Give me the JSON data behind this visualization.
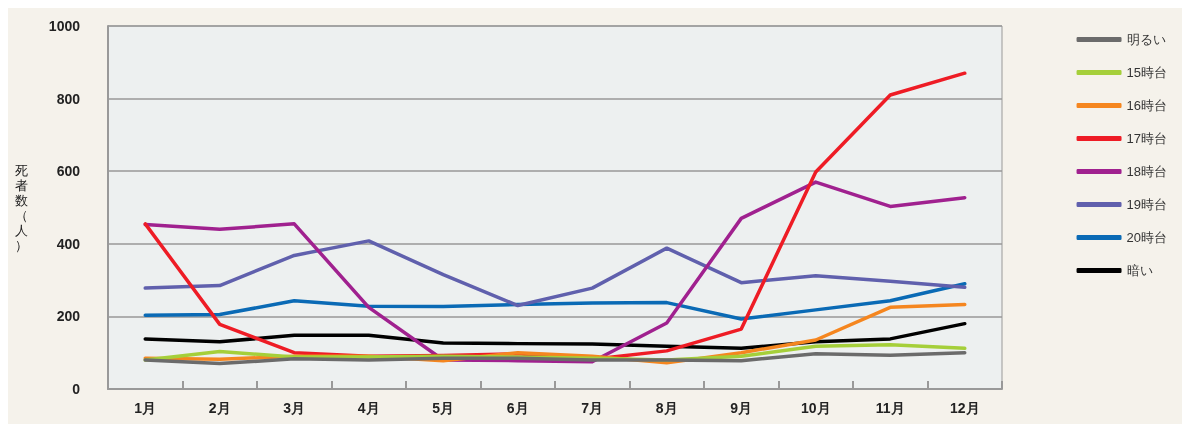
{
  "chart_data": {
    "type": "line",
    "ylabel": "死者数（人）",
    "categories": [
      "1月",
      "2月",
      "3月",
      "4月",
      "5月",
      "6月",
      "7月",
      "8月",
      "9月",
      "10月",
      "11月",
      "12月"
    ],
    "ylim": [
      0,
      1000
    ],
    "yticks": [
      0,
      200,
      400,
      600,
      800,
      1000
    ],
    "grid": "y",
    "legend": "top right",
    "marker": "none",
    "line_style": "solid",
    "series": [
      {
        "name": "明るい",
        "color": "#6b6b6b",
        "values": [
          80,
          70,
          83,
          80,
          85,
          85,
          80,
          80,
          78,
          97,
          93,
          100
        ]
      },
      {
        "name": "15時台",
        "color": "#a5cf3a",
        "values": [
          80,
          103,
          88,
          88,
          90,
          88,
          85,
          80,
          90,
          118,
          122,
          112
        ]
      },
      {
        "name": "16時台",
        "color": "#f5861f",
        "values": [
          85,
          82,
          90,
          90,
          78,
          100,
          90,
          72,
          100,
          135,
          225,
          233
        ]
      },
      {
        "name": "17時台",
        "color": "#ee1c25",
        "values": [
          455,
          178,
          100,
          90,
          92,
          97,
          82,
          105,
          165,
          598,
          810,
          870
        ]
      },
      {
        "name": "18時台",
        "color": "#a0218f",
        "values": [
          453,
          440,
          455,
          225,
          80,
          78,
          75,
          182,
          470,
          570,
          503,
          527
        ]
      },
      {
        "name": "19時台",
        "color": "#6060ad",
        "values": [
          278,
          285,
          368,
          408,
          315,
          230,
          278,
          388,
          293,
          312,
          297,
          280
        ]
      },
      {
        "name": "20時台",
        "color": "#0a6ab5",
        "values": [
          203,
          205,
          243,
          228,
          227,
          233,
          237,
          238,
          193,
          218,
          243,
          290
        ]
      },
      {
        "name": "暗い",
        "color": "#000000",
        "values": [
          138,
          130,
          148,
          148,
          127,
          125,
          124,
          118,
          112,
          130,
          138,
          180
        ]
      }
    ]
  }
}
